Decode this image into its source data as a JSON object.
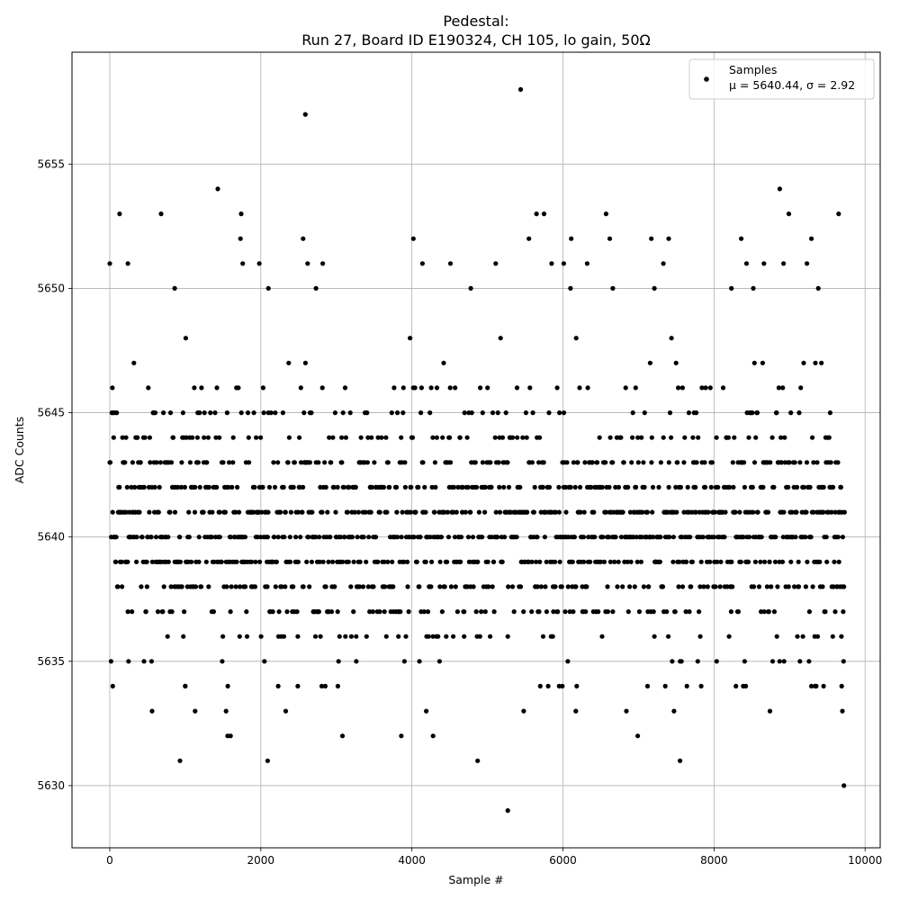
{
  "chart_data": {
    "type": "scatter",
    "title_line1": "Pedestal:",
    "title_line2": "Run 27, Board ID E190324, CH 105, lo gain, 50Ω",
    "xlabel": "Sample #",
    "ylabel": "ADC Counts",
    "xlim": [
      -500,
      10200
    ],
    "ylim": [
      5627.5,
      5659.5
    ],
    "xticks": [
      0,
      2000,
      4000,
      6000,
      8000,
      10000
    ],
    "yticks": [
      5630,
      5635,
      5640,
      5645,
      5650,
      5655
    ],
    "grid": true,
    "legend_position": "top-right",
    "legend_label": "Samples",
    "legend_stats": "μ = 5640.44, σ = 2.92",
    "n_samples": 9728,
    "marker_color": "#000000",
    "series": [
      {
        "name": "Samples",
        "points": [
          [
            0,
            5651
          ],
          [
            130,
            5653
          ],
          [
            240,
            5651
          ],
          [
            680,
            5653
          ],
          [
            860,
            5650
          ],
          [
            1430,
            5654
          ],
          [
            1740,
            5653
          ],
          [
            1730,
            5652
          ],
          [
            1760,
            5651
          ],
          [
            1980,
            5651
          ],
          [
            2100,
            5650
          ],
          [
            2560,
            5652
          ],
          [
            2590,
            5657
          ],
          [
            2620,
            5651
          ],
          [
            2730,
            5650
          ],
          [
            2820,
            5651
          ],
          [
            4020,
            5652
          ],
          [
            4140,
            5651
          ],
          [
            4510,
            5651
          ],
          [
            4780,
            5650
          ],
          [
            5110,
            5651
          ],
          [
            5440,
            5658
          ],
          [
            5550,
            5652
          ],
          [
            5650,
            5653
          ],
          [
            5750,
            5653
          ],
          [
            5850,
            5651
          ],
          [
            6010,
            5651
          ],
          [
            6110,
            5652
          ],
          [
            6100,
            5650
          ],
          [
            6320,
            5651
          ],
          [
            6570,
            5653
          ],
          [
            6620,
            5652
          ],
          [
            6660,
            5650
          ],
          [
            7170,
            5652
          ],
          [
            7210,
            5650
          ],
          [
            7330,
            5651
          ],
          [
            7400,
            5652
          ],
          [
            8230,
            5650
          ],
          [
            8360,
            5652
          ],
          [
            8430,
            5651
          ],
          [
            8520,
            5650
          ],
          [
            8660,
            5651
          ],
          [
            8870,
            5654
          ],
          [
            8920,
            5651
          ],
          [
            8990,
            5653
          ],
          [
            9230,
            5651
          ],
          [
            9290,
            5652
          ],
          [
            9380,
            5650
          ],
          [
            9650,
            5653
          ],
          [
            930,
            5631
          ],
          [
            2090,
            5631
          ],
          [
            4870,
            5631
          ],
          [
            5270,
            5629
          ],
          [
            7550,
            5631
          ],
          [
            9720,
            5630
          ],
          [
            1560,
            5632
          ],
          [
            1600,
            5632
          ],
          [
            3080,
            5632
          ],
          [
            4280,
            5632
          ],
          [
            6990,
            5632
          ],
          [
            3860,
            5632
          ],
          [
            560,
            5633
          ],
          [
            1130,
            5633
          ],
          [
            1540,
            5633
          ],
          [
            2330,
            5633
          ],
          [
            4190,
            5633
          ],
          [
            5480,
            5633
          ],
          [
            6170,
            5633
          ],
          [
            6840,
            5633
          ],
          [
            7470,
            5633
          ],
          [
            8740,
            5633
          ],
          [
            9700,
            5633
          ],
          [
            40,
            5634
          ],
          [
            1000,
            5634
          ],
          [
            2230,
            5634
          ],
          [
            2490,
            5634
          ],
          [
            3020,
            5634
          ],
          [
            5700,
            5634
          ],
          [
            5950,
            5634
          ],
          [
            7120,
            5634
          ],
          [
            7830,
            5634
          ],
          [
            8420,
            5634
          ],
          [
            9450,
            5634
          ],
          [
            9690,
            5634
          ]
        ]
      }
    ]
  }
}
